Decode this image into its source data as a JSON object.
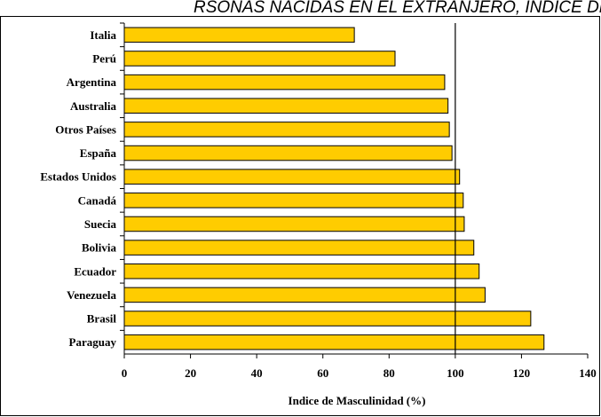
{
  "header_fragment": "RSONAS NACIDAS EN EL EXTRANJERO, ÍNDICE DE",
  "chart_data": {
    "type": "bar",
    "orientation": "horizontal",
    "categories": [
      "Italia",
      "Perú",
      "Argentina",
      "Australia",
      "Otros Países",
      "España",
      "Estados Unidos",
      "Canadá",
      "Suecia",
      "Bolivia",
      "Ecuador",
      "Venezuela",
      "Brasil",
      "Paraguay"
    ],
    "values": [
      69.5,
      81.8,
      96.8,
      97.8,
      98.2,
      99.0,
      101.3,
      102.4,
      102.7,
      105.6,
      107.2,
      109.0,
      122.8,
      126.8
    ],
    "xlabel": "Indice de Masculinidad (%)",
    "ylabel": "",
    "xlim": [
      0,
      140
    ],
    "xticks": [
      0,
      20,
      40,
      60,
      80,
      100,
      120,
      140
    ],
    "reference_line": 100,
    "bar_color": "#FFCC00",
    "bar_stroke": "#000000",
    "grid": false
  }
}
